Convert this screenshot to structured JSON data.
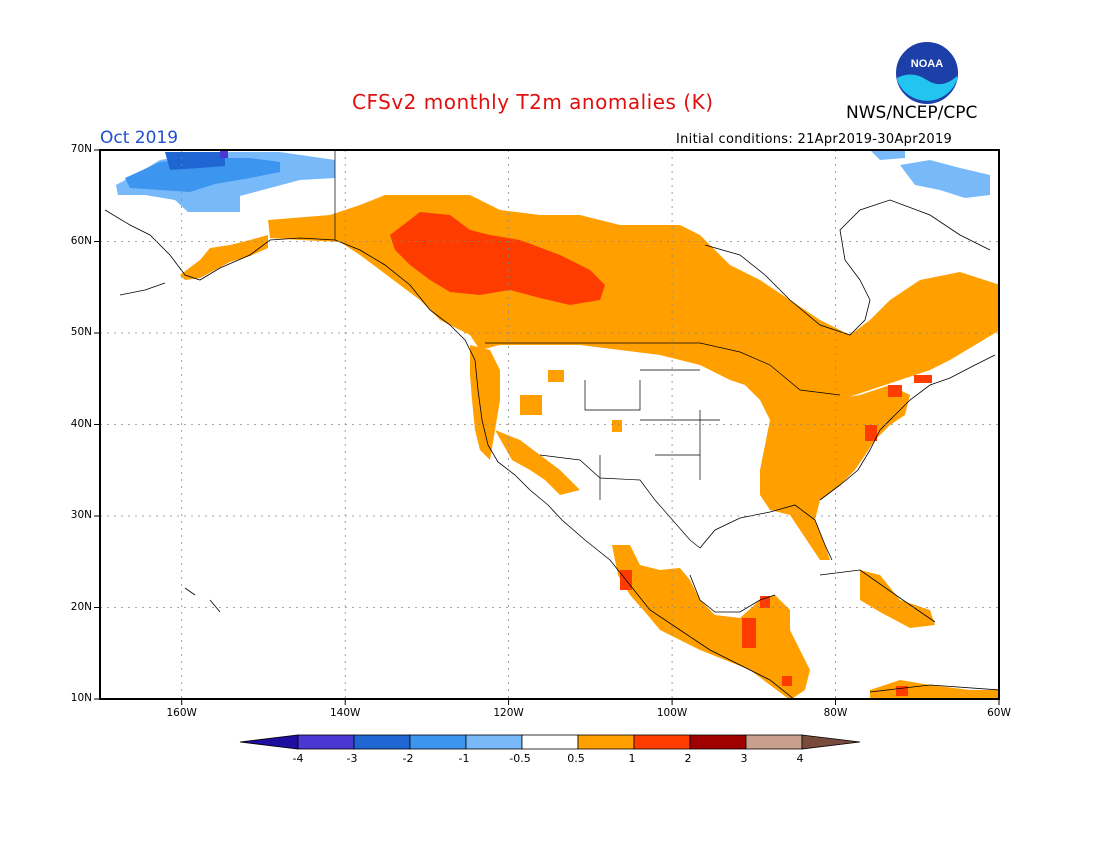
{
  "header": {
    "title": "CFSv2 monthly T2m anomalies (K)",
    "agency": "NWS/NCEP/CPC",
    "logo_text": "NOAA",
    "period": "Oct 2019",
    "initial_conditions": "Initial conditions: 21Apr2019-30Apr2019"
  },
  "axes": {
    "lat_labels": [
      "70N",
      "60N",
      "50N",
      "40N",
      "30N",
      "20N",
      "10N"
    ],
    "lon_labels": [
      "160W",
      "140W",
      "120W",
      "100W",
      "80W",
      "60W"
    ]
  },
  "colorbar": {
    "ticks": [
      "-4",
      "-3",
      "-2",
      "-1",
      "-0.5",
      "0.5",
      "1",
      "2",
      "3",
      "4"
    ],
    "colors": {
      "lt_-4": "#1e0fa0",
      "-4_-3": "#4a38d2",
      "-3_-2": "#1f66d2",
      "-2_-1": "#3c96f0",
      "-1_-0.5": "#78b9fa",
      "-0.5_0.5": "#ffffff",
      "0.5_1": "#ffa000",
      "1_2": "#ff3c00",
      "2_3": "#a00000",
      "3_4": "#c8a08c",
      "gt_4": "#784b3c"
    }
  },
  "map_data": {
    "region": "North America",
    "lat_range": [
      10,
      70
    ],
    "lon_range": [
      -170,
      -60
    ],
    "anomaly_regions": [
      {
        "area": "Northern Alaska / Arctic coast",
        "category": "-2_-1"
      },
      {
        "area": "Far northern Alaska",
        "category": "-3_-2"
      },
      {
        "area": "Canadian Arctic islands",
        "category": "-1_-0.5"
      },
      {
        "area": "Southern Alaska and Canada",
        "category": "0.5_1"
      },
      {
        "area": "Western Canada (BC / Alberta / Saskatchewan)",
        "category": "1_2"
      },
      {
        "area": "Eastern United States",
        "category": "0.5_1"
      },
      {
        "area": "US West Coast",
        "category": "0.5_1"
      },
      {
        "area": "Northeast US coast",
        "category": "1_2"
      },
      {
        "area": "Mexico and Central America",
        "category": "0.5_1"
      },
      {
        "area": "Central America isolated spots",
        "category": "1_2"
      },
      {
        "area": "Central United States",
        "category": "-0.5_0.5"
      },
      {
        "area": "Hudson Bay region",
        "category": "-0.5_0.5"
      }
    ]
  }
}
